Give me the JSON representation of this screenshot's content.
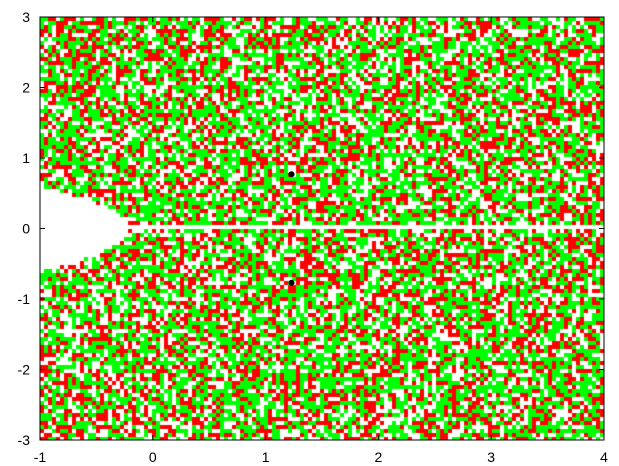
{
  "chart_data": {
    "type": "heatmap",
    "title": "",
    "xlabel": "",
    "ylabel": "",
    "xlim": [
      -1,
      4
    ],
    "ylim": [
      -3,
      3
    ],
    "grid": false,
    "legend": "none",
    "x_ticks": [
      "-1",
      "0",
      "1",
      "2",
      "3",
      "4"
    ],
    "y_ticks": [
      "3",
      "2",
      "1",
      "0",
      "-1",
      "-2",
      "-3"
    ],
    "colors": {
      "green": "#00ff00",
      "red": "#ff0000",
      "white": "#ffffff",
      "black": "#000000"
    },
    "points": [
      {
        "x": 1.23,
        "y": 0.77,
        "color": "#000000"
      },
      {
        "x": 1.23,
        "y": -0.77,
        "color": "#000000"
      }
    ],
    "empty_regions": [
      {
        "shape": "lobe",
        "x_range": [
          -1,
          -0.2
        ],
        "y_range": [
          -0.6,
          0.6
        ]
      },
      {
        "shape": "line",
        "x_range": [
          -1,
          4
        ],
        "y": 0
      }
    ]
  }
}
